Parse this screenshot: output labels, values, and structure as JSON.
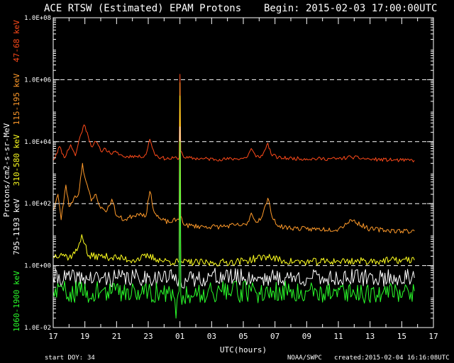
{
  "header": {
    "title": "ACE RTSW (Estimated) EPAM Protons",
    "begin": "Begin: 2015-02-03 17:00:00UTC"
  },
  "footer": {
    "start_doy_label": "start DOY:",
    "start_doy_value": "34",
    "credit": "NOAA/SWPC",
    "created": "created:2015-02-04 16:16:08UTC"
  },
  "chart_data": {
    "type": "line",
    "title": "ACE RTSW (Estimated) EPAM Protons",
    "xlabel": "UTC(hours)",
    "ylabel": "Protons/cm2-s-sr-MeV",
    "yscale": "log",
    "ylim": [
      0.01,
      100000000
    ],
    "xlim": [
      17,
      41
    ],
    "x_unit": "hours since 2015-02-03 00:00 UTC",
    "x_ticks": [
      {
        "x": 17,
        "label": "17"
      },
      {
        "x": 19,
        "label": "19"
      },
      {
        "x": 21,
        "label": "21"
      },
      {
        "x": 23,
        "label": "23"
      },
      {
        "x": 25,
        "label": "01"
      },
      {
        "x": 27,
        "label": "03"
      },
      {
        "x": 29,
        "label": "05"
      },
      {
        "x": 31,
        "label": "07"
      },
      {
        "x": 33,
        "label": "09"
      },
      {
        "x": 35,
        "label": "11"
      },
      {
        "x": 37,
        "label": "13"
      },
      {
        "x": 39,
        "label": "15"
      },
      {
        "x": 41,
        "label": "17"
      }
    ],
    "y_ticks": [
      {
        "y": 0.01,
        "label": "1.0E-02"
      },
      {
        "y": 1,
        "label": "1.0E+00"
      },
      {
        "y": 100,
        "label": "1.0E+02"
      },
      {
        "y": 10000,
        "label": "1.0E+04"
      },
      {
        "y": 1000000,
        "label": "1.0E+06"
      },
      {
        "y": 100000000,
        "label": "1.0E+08"
      }
    ],
    "grid_y_dashed": [
      1,
      100,
      10000,
      1000000
    ],
    "series": [
      {
        "name": "47-68 keV",
        "color": "#ff4a1a",
        "noise": 0.06,
        "seed": 11,
        "points": [
          [
            17.0,
            2500
          ],
          [
            17.4,
            7000
          ],
          [
            17.7,
            3000
          ],
          [
            18.1,
            8000
          ],
          [
            18.4,
            3500
          ],
          [
            18.7,
            15000
          ],
          [
            18.95,
            35000
          ],
          [
            19.15,
            20000
          ],
          [
            19.4,
            7000
          ],
          [
            19.7,
            10000
          ],
          [
            20.0,
            5000
          ],
          [
            20.3,
            6000
          ],
          [
            20.6,
            4200
          ],
          [
            21.0,
            4500
          ],
          [
            21.5,
            3200
          ],
          [
            22.0,
            3500
          ],
          [
            22.5,
            3200
          ],
          [
            22.85,
            3800
          ],
          [
            23.1,
            12000
          ],
          [
            23.4,
            4000
          ],
          [
            23.8,
            3000
          ],
          [
            24.3,
            2800
          ],
          [
            24.8,
            3000
          ],
          [
            24.95,
            3000
          ],
          [
            25.0,
            1500000
          ],
          [
            25.05,
            5000
          ],
          [
            25.3,
            3000
          ],
          [
            26.5,
            2800
          ],
          [
            27.5,
            2700
          ],
          [
            28.5,
            2800
          ],
          [
            29.2,
            3000
          ],
          [
            29.5,
            6000
          ],
          [
            29.8,
            3200
          ],
          [
            30.2,
            3500
          ],
          [
            30.55,
            9000
          ],
          [
            30.75,
            4000
          ],
          [
            31.2,
            3000
          ],
          [
            33.0,
            2800
          ],
          [
            35.0,
            2800
          ],
          [
            35.8,
            3200
          ],
          [
            37.0,
            2700
          ],
          [
            39.0,
            2500
          ],
          [
            39.8,
            2500
          ]
        ]
      },
      {
        "name": "115-195 keV",
        "color": "#ff9a2a",
        "noise": 0.08,
        "seed": 23,
        "points": [
          [
            17.0,
            60
          ],
          [
            17.3,
            200
          ],
          [
            17.5,
            30
          ],
          [
            17.8,
            400
          ],
          [
            18.0,
            80
          ],
          [
            18.3,
            150
          ],
          [
            18.6,
            200
          ],
          [
            18.85,
            2000
          ],
          [
            19.0,
            700
          ],
          [
            19.15,
            400
          ],
          [
            19.4,
            120
          ],
          [
            19.7,
            200
          ],
          [
            20.0,
            70
          ],
          [
            20.4,
            60
          ],
          [
            20.7,
            140
          ],
          [
            21.0,
            40
          ],
          [
            21.5,
            30
          ],
          [
            22.0,
            40
          ],
          [
            22.5,
            50
          ],
          [
            22.85,
            40
          ],
          [
            23.1,
            250
          ],
          [
            23.4,
            50
          ],
          [
            23.8,
            30
          ],
          [
            24.3,
            25
          ],
          [
            24.8,
            30
          ],
          [
            24.95,
            30
          ],
          [
            25.0,
            800000
          ],
          [
            25.05,
            40
          ],
          [
            25.3,
            20
          ],
          [
            26.5,
            18
          ],
          [
            27.5,
            18
          ],
          [
            28.5,
            20
          ],
          [
            29.2,
            20
          ],
          [
            29.5,
            50
          ],
          [
            29.8,
            25
          ],
          [
            30.2,
            40
          ],
          [
            30.55,
            150
          ],
          [
            30.75,
            50
          ],
          [
            31.2,
            18
          ],
          [
            33.0,
            15
          ],
          [
            35.0,
            15
          ],
          [
            35.8,
            30
          ],
          [
            37.0,
            15
          ],
          [
            39.0,
            13
          ],
          [
            39.8,
            13
          ]
        ]
      },
      {
        "name": "310-580 keV",
        "color": "#ffff1f",
        "noise": 0.12,
        "seed": 37,
        "points": [
          [
            17.0,
            2
          ],
          [
            17.5,
            2.5
          ],
          [
            18.0,
            1.8
          ],
          [
            18.5,
            3
          ],
          [
            18.8,
            10
          ],
          [
            19.0,
            5
          ],
          [
            19.2,
            2
          ],
          [
            20.0,
            2
          ],
          [
            21.0,
            1.8
          ],
          [
            22.0,
            1.5
          ],
          [
            23.0,
            2
          ],
          [
            24.0,
            1.4
          ],
          [
            24.9,
            1.3
          ],
          [
            24.95,
            1.3
          ],
          [
            25.0,
            300000
          ],
          [
            25.05,
            1.3
          ],
          [
            25.5,
            1.3
          ],
          [
            27.0,
            1.2
          ],
          [
            29.0,
            1.4
          ],
          [
            30.5,
            2
          ],
          [
            31.5,
            1.4
          ],
          [
            33.0,
            1.3
          ],
          [
            35.0,
            1.4
          ],
          [
            37.0,
            1.4
          ],
          [
            39.0,
            1.5
          ],
          [
            39.8,
            1.5
          ]
        ]
      },
      {
        "name": "795-1193 keV",
        "color": "#ffffff",
        "noise": 0.28,
        "seed": 41,
        "points": [
          [
            17.0,
            0.4
          ],
          [
            20.0,
            0.38
          ],
          [
            23.0,
            0.42
          ],
          [
            24.95,
            0.4
          ],
          [
            25.0,
            30000
          ],
          [
            25.05,
            0.3
          ],
          [
            27.0,
            0.45
          ],
          [
            30.0,
            0.4
          ],
          [
            33.0,
            0.4
          ],
          [
            36.0,
            0.4
          ],
          [
            39.8,
            0.4
          ]
        ]
      },
      {
        "name": "1060-1900 keV",
        "color": "#2aff2a",
        "noise": 0.35,
        "seed": 59,
        "points": [
          [
            17.0,
            0.15
          ],
          [
            20.0,
            0.14
          ],
          [
            23.0,
            0.15
          ],
          [
            24.6,
            0.1
          ],
          [
            24.75,
            0.02
          ],
          [
            24.95,
            0.15
          ],
          [
            25.0,
            10000
          ],
          [
            25.05,
            0.12
          ],
          [
            27.0,
            0.15
          ],
          [
            30.0,
            0.14
          ],
          [
            33.0,
            0.15
          ],
          [
            36.0,
            0.13
          ],
          [
            39.8,
            0.15
          ]
        ]
      }
    ]
  }
}
